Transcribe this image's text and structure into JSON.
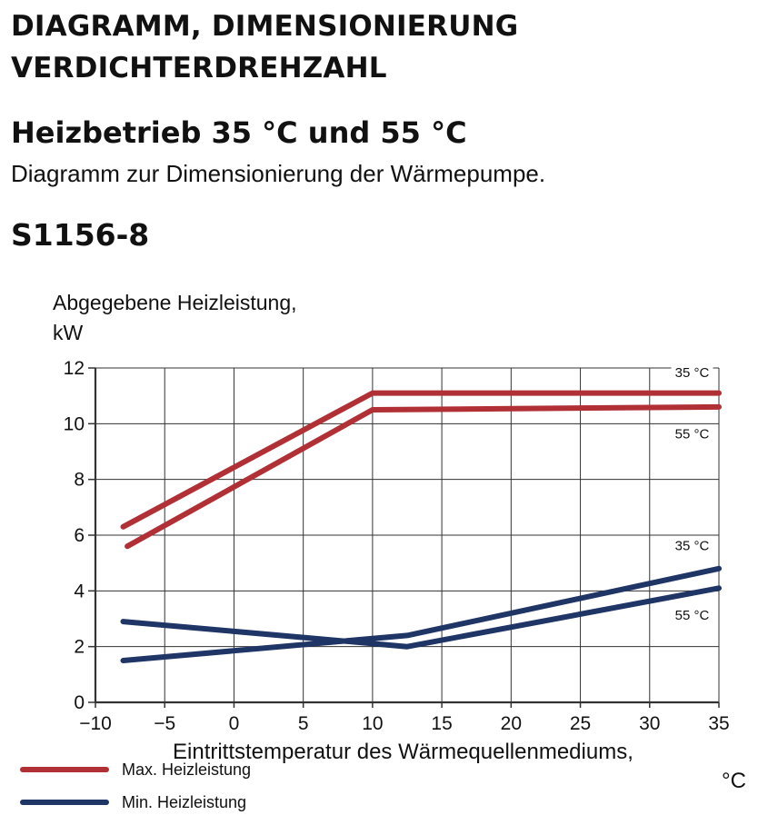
{
  "header": {
    "title_line1": "DIAGRAMM, DIMENSIONIERUNG",
    "title_line2": "VERDICHTERDREHZAHL",
    "subtitle": "Heizbetrieb 35  °C und 55  °C",
    "description": "Diagramm zur Dimensionierung der Wärmepumpe.",
    "model": "S1156-8"
  },
  "colors": {
    "max": "#b03035",
    "min": "#1f3566",
    "grid": "#333333"
  },
  "legend": [
    {
      "label": "Max. Heizleistung",
      "color": "#b03035"
    },
    {
      "label": "Min. Heizleistung",
      "color": "#1f3566"
    }
  ],
  "chart_data": {
    "type": "line",
    "ylabel_line1": "Abgegebene Heizleistung,",
    "ylabel_line2": "kW",
    "xlabel": "Eintrittstemperatur des Wärmequellenmediums,",
    "xlabel_unit": "°C",
    "xlim": [
      -10,
      35
    ],
    "ylim": [
      0,
      12
    ],
    "xticks": [
      -10,
      -5,
      0,
      5,
      10,
      15,
      20,
      25,
      30,
      35
    ],
    "xtick_labels": [
      "−10",
      "−5",
      "0",
      "5",
      "10",
      "15",
      "20",
      "25",
      "30",
      "35"
    ],
    "yticks": [
      0,
      2,
      4,
      6,
      8,
      10,
      12
    ],
    "ytick_labels": [
      "0",
      "2",
      "4",
      "6",
      "8",
      "10",
      "12"
    ],
    "grid": true,
    "series": [
      {
        "name": "Max. Heizleistung",
        "temp": "35 °C",
        "color": "#b03035",
        "x": [
          -8,
          10,
          35
        ],
        "y": [
          6.3,
          11.1,
          11.1
        ]
      },
      {
        "name": "Max. Heizleistung",
        "temp": "55 °C",
        "color": "#b03035",
        "x": [
          -7.7,
          10,
          35
        ],
        "y": [
          5.6,
          10.5,
          10.6
        ]
      },
      {
        "name": "Min. Heizleistung",
        "temp": "35 °C",
        "color": "#1f3566",
        "x": [
          -8,
          12.5,
          35
        ],
        "y": [
          1.5,
          2.4,
          4.8
        ]
      },
      {
        "name": "Min. Heizleistung",
        "temp": "55 °C",
        "color": "#1f3566",
        "x": [
          -8,
          12.5,
          35
        ],
        "y": [
          2.9,
          2.0,
          4.1
        ]
      }
    ],
    "curve_labels": [
      {
        "text": "35 °C",
        "x": 33,
        "y": 11.7
      },
      {
        "text": "55 °C",
        "x": 33,
        "y": 9.5
      },
      {
        "text": "35 °C",
        "x": 33,
        "y": 5.5
      },
      {
        "text": "55 °C",
        "x": 33,
        "y": 3.0
      }
    ]
  }
}
